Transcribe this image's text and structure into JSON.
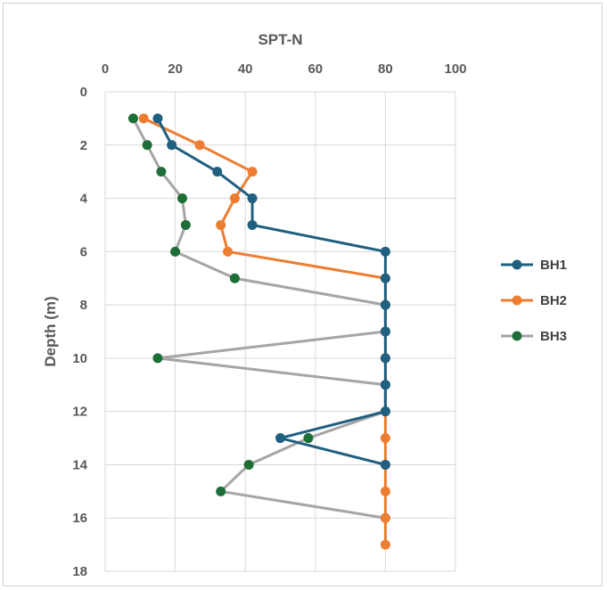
{
  "chart_data": {
    "type": "line",
    "xlabel": "SPT-N",
    "ylabel": "Depth (m)",
    "xlim": [
      0,
      100
    ],
    "ylim": [
      0,
      18
    ],
    "x_ticks": [
      "0",
      "20",
      "40",
      "60",
      "80",
      "100"
    ],
    "y_ticks": [
      "0",
      "2",
      "4",
      "6",
      "8",
      "10",
      "12",
      "14",
      "16",
      "18"
    ],
    "x_axis_position": "top",
    "y_axis_inverted": true,
    "grid": true,
    "legend_position": "right",
    "series": [
      {
        "name": "BH1",
        "color": "#1f5f7f",
        "points": [
          {
            "n": 15,
            "depth": 1
          },
          {
            "n": 19,
            "depth": 2
          },
          {
            "n": 32,
            "depth": 3
          },
          {
            "n": 42,
            "depth": 4
          },
          {
            "n": 42,
            "depth": 5
          },
          {
            "n": 80,
            "depth": 6
          },
          {
            "n": 80,
            "depth": 7
          },
          {
            "n": 80,
            "depth": 8
          },
          {
            "n": 80,
            "depth": 9
          },
          {
            "n": 80,
            "depth": 10
          },
          {
            "n": 80,
            "depth": 11
          },
          {
            "n": 80,
            "depth": 12
          },
          {
            "n": 50,
            "depth": 13
          },
          {
            "n": 80,
            "depth": 14
          }
        ]
      },
      {
        "name": "BH2",
        "color": "#ed7d31",
        "points": [
          {
            "n": 11,
            "depth": 1
          },
          {
            "n": 27,
            "depth": 2
          },
          {
            "n": 42,
            "depth": 3
          },
          {
            "n": 37,
            "depth": 4
          },
          {
            "n": 33,
            "depth": 5
          },
          {
            "n": 35,
            "depth": 6
          },
          {
            "n": 80,
            "depth": 7
          },
          {
            "n": 80,
            "depth": 8
          },
          {
            "n": 80,
            "depth": 9
          },
          {
            "n": 80,
            "depth": 10
          },
          {
            "n": 80,
            "depth": 11
          },
          {
            "n": 80,
            "depth": 12
          },
          {
            "n": 80,
            "depth": 13
          },
          {
            "n": 80,
            "depth": 14
          },
          {
            "n": 80,
            "depth": 15
          },
          {
            "n": 80,
            "depth": 16
          },
          {
            "n": 80,
            "depth": 17
          }
        ]
      },
      {
        "name": "BH3",
        "color": "#a5a5a5",
        "marker_color": "#1e6e38",
        "points": [
          {
            "n": 8,
            "depth": 1
          },
          {
            "n": 12,
            "depth": 2
          },
          {
            "n": 16,
            "depth": 3
          },
          {
            "n": 22,
            "depth": 4
          },
          {
            "n": 23,
            "depth": 5
          },
          {
            "n": 20,
            "depth": 6
          },
          {
            "n": 37,
            "depth": 7
          },
          {
            "n": 80,
            "depth": 8
          },
          {
            "n": 80,
            "depth": 9
          },
          {
            "n": 15,
            "depth": 10
          },
          {
            "n": 80,
            "depth": 11
          },
          {
            "n": 80,
            "depth": 12
          },
          {
            "n": 58,
            "depth": 13
          },
          {
            "n": 41,
            "depth": 14
          },
          {
            "n": 33,
            "depth": 15
          },
          {
            "n": 80,
            "depth": 16
          }
        ]
      }
    ]
  }
}
